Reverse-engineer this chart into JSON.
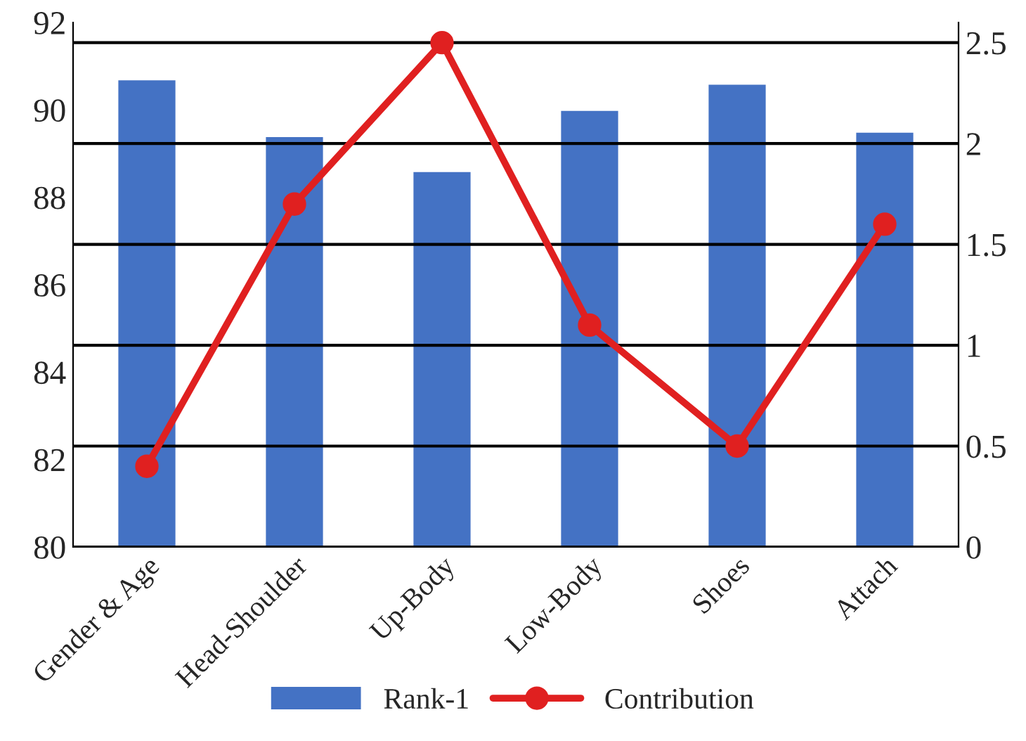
{
  "chart_data": {
    "type": "bar",
    "categories": [
      "Gender & Age",
      "Head-Shoulder",
      "Up-Body",
      "Low-Body",
      "Shoes",
      "Attach"
    ],
    "series": [
      {
        "name": "Rank-1",
        "color": "#4472c4",
        "values": [
          90.7,
          89.4,
          88.6,
          90.0,
          90.6,
          89.5
        ]
      },
      {
        "name": "Contribution",
        "type": "line",
        "axis": "y2",
        "color": "#e02020",
        "marker": "circle",
        "values": [
          0.4,
          1.7,
          2.5,
          1.1,
          0.5,
          1.6
        ]
      }
    ],
    "ylim": [
      80,
      92
    ],
    "yticks": [
      80,
      82,
      84,
      86,
      88,
      90,
      92
    ],
    "y2lim": [
      0,
      2.6
    ],
    "y2ticks": [
      0,
      0.5,
      1,
      1.5,
      2,
      2.5
    ],
    "grid": "y2",
    "legend": "bottom"
  }
}
